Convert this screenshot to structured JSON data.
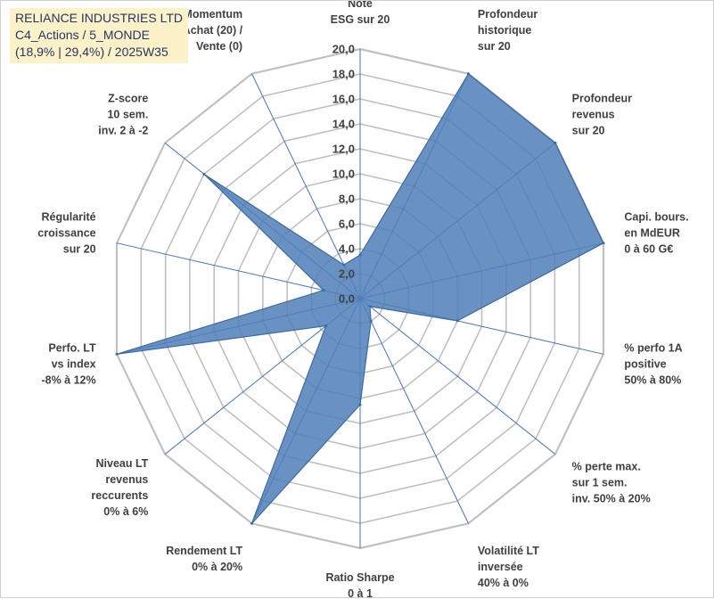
{
  "header": {
    "line1": "RELIANCE INDUSTRIES LTD",
    "line2": "C4_Actions / 5_MONDE",
    "line3": "(18,9% | 29,4%) / 2025W35"
  },
  "colors": {
    "series_fill": "#4f7fb8",
    "series_stroke": "#3d6aa3",
    "grid_ring": "#c0c0c0",
    "spoke": "#4472c4",
    "header_bg": "#fdf1c8",
    "header_text": "#1f3864",
    "label_text": "#404040"
  },
  "chart_data": {
    "type": "radar",
    "rlim": [
      0,
      20
    ],
    "grid": true,
    "tick_labels": [
      "0,0",
      "2,0",
      "4,0",
      "6,0",
      "8,0",
      "10,0",
      "12,0",
      "14,0",
      "16,0",
      "18,0",
      "20,0"
    ],
    "axes": [
      [
        "Note",
        "ESG sur 20"
      ],
      [
        "Profondeur",
        "historique",
        "sur 20"
      ],
      [
        "Profondeur",
        "revenus",
        "sur 20"
      ],
      [
        "Capi. bours.",
        "en MdEUR",
        "0 à 60 G€"
      ],
      [
        "% perfo 1A",
        "positive",
        "50% à 80%"
      ],
      [
        "% perte max.",
        "sur 1 sem.",
        "inv. 50% à 20%"
      ],
      [
        "Volatilité LT",
        "inversée",
        "40% à 0%"
      ],
      [
        "Ratio Sharpe",
        "0 à 1"
      ],
      [
        "Rendement LT",
        "0% à 20%"
      ],
      [
        "Niveau LT",
        "revenus",
        "reccurents",
        "0% à 6%"
      ],
      [
        "Perfo. LT",
        "vs index",
        "-8% à 12%"
      ],
      [
        "Régularité",
        "croissance",
        "sur 20"
      ],
      [
        "Z-score",
        "10 sem.",
        "inv. 2 à -2"
      ],
      [
        "Momentum",
        "Achat (20) /",
        "Vente (0)"
      ]
    ],
    "series": [
      {
        "values": [
          3.5,
          20,
          20,
          20,
          8,
          1,
          2,
          8.5,
          20,
          3.5,
          20,
          3,
          16,
          3
        ]
      }
    ]
  }
}
